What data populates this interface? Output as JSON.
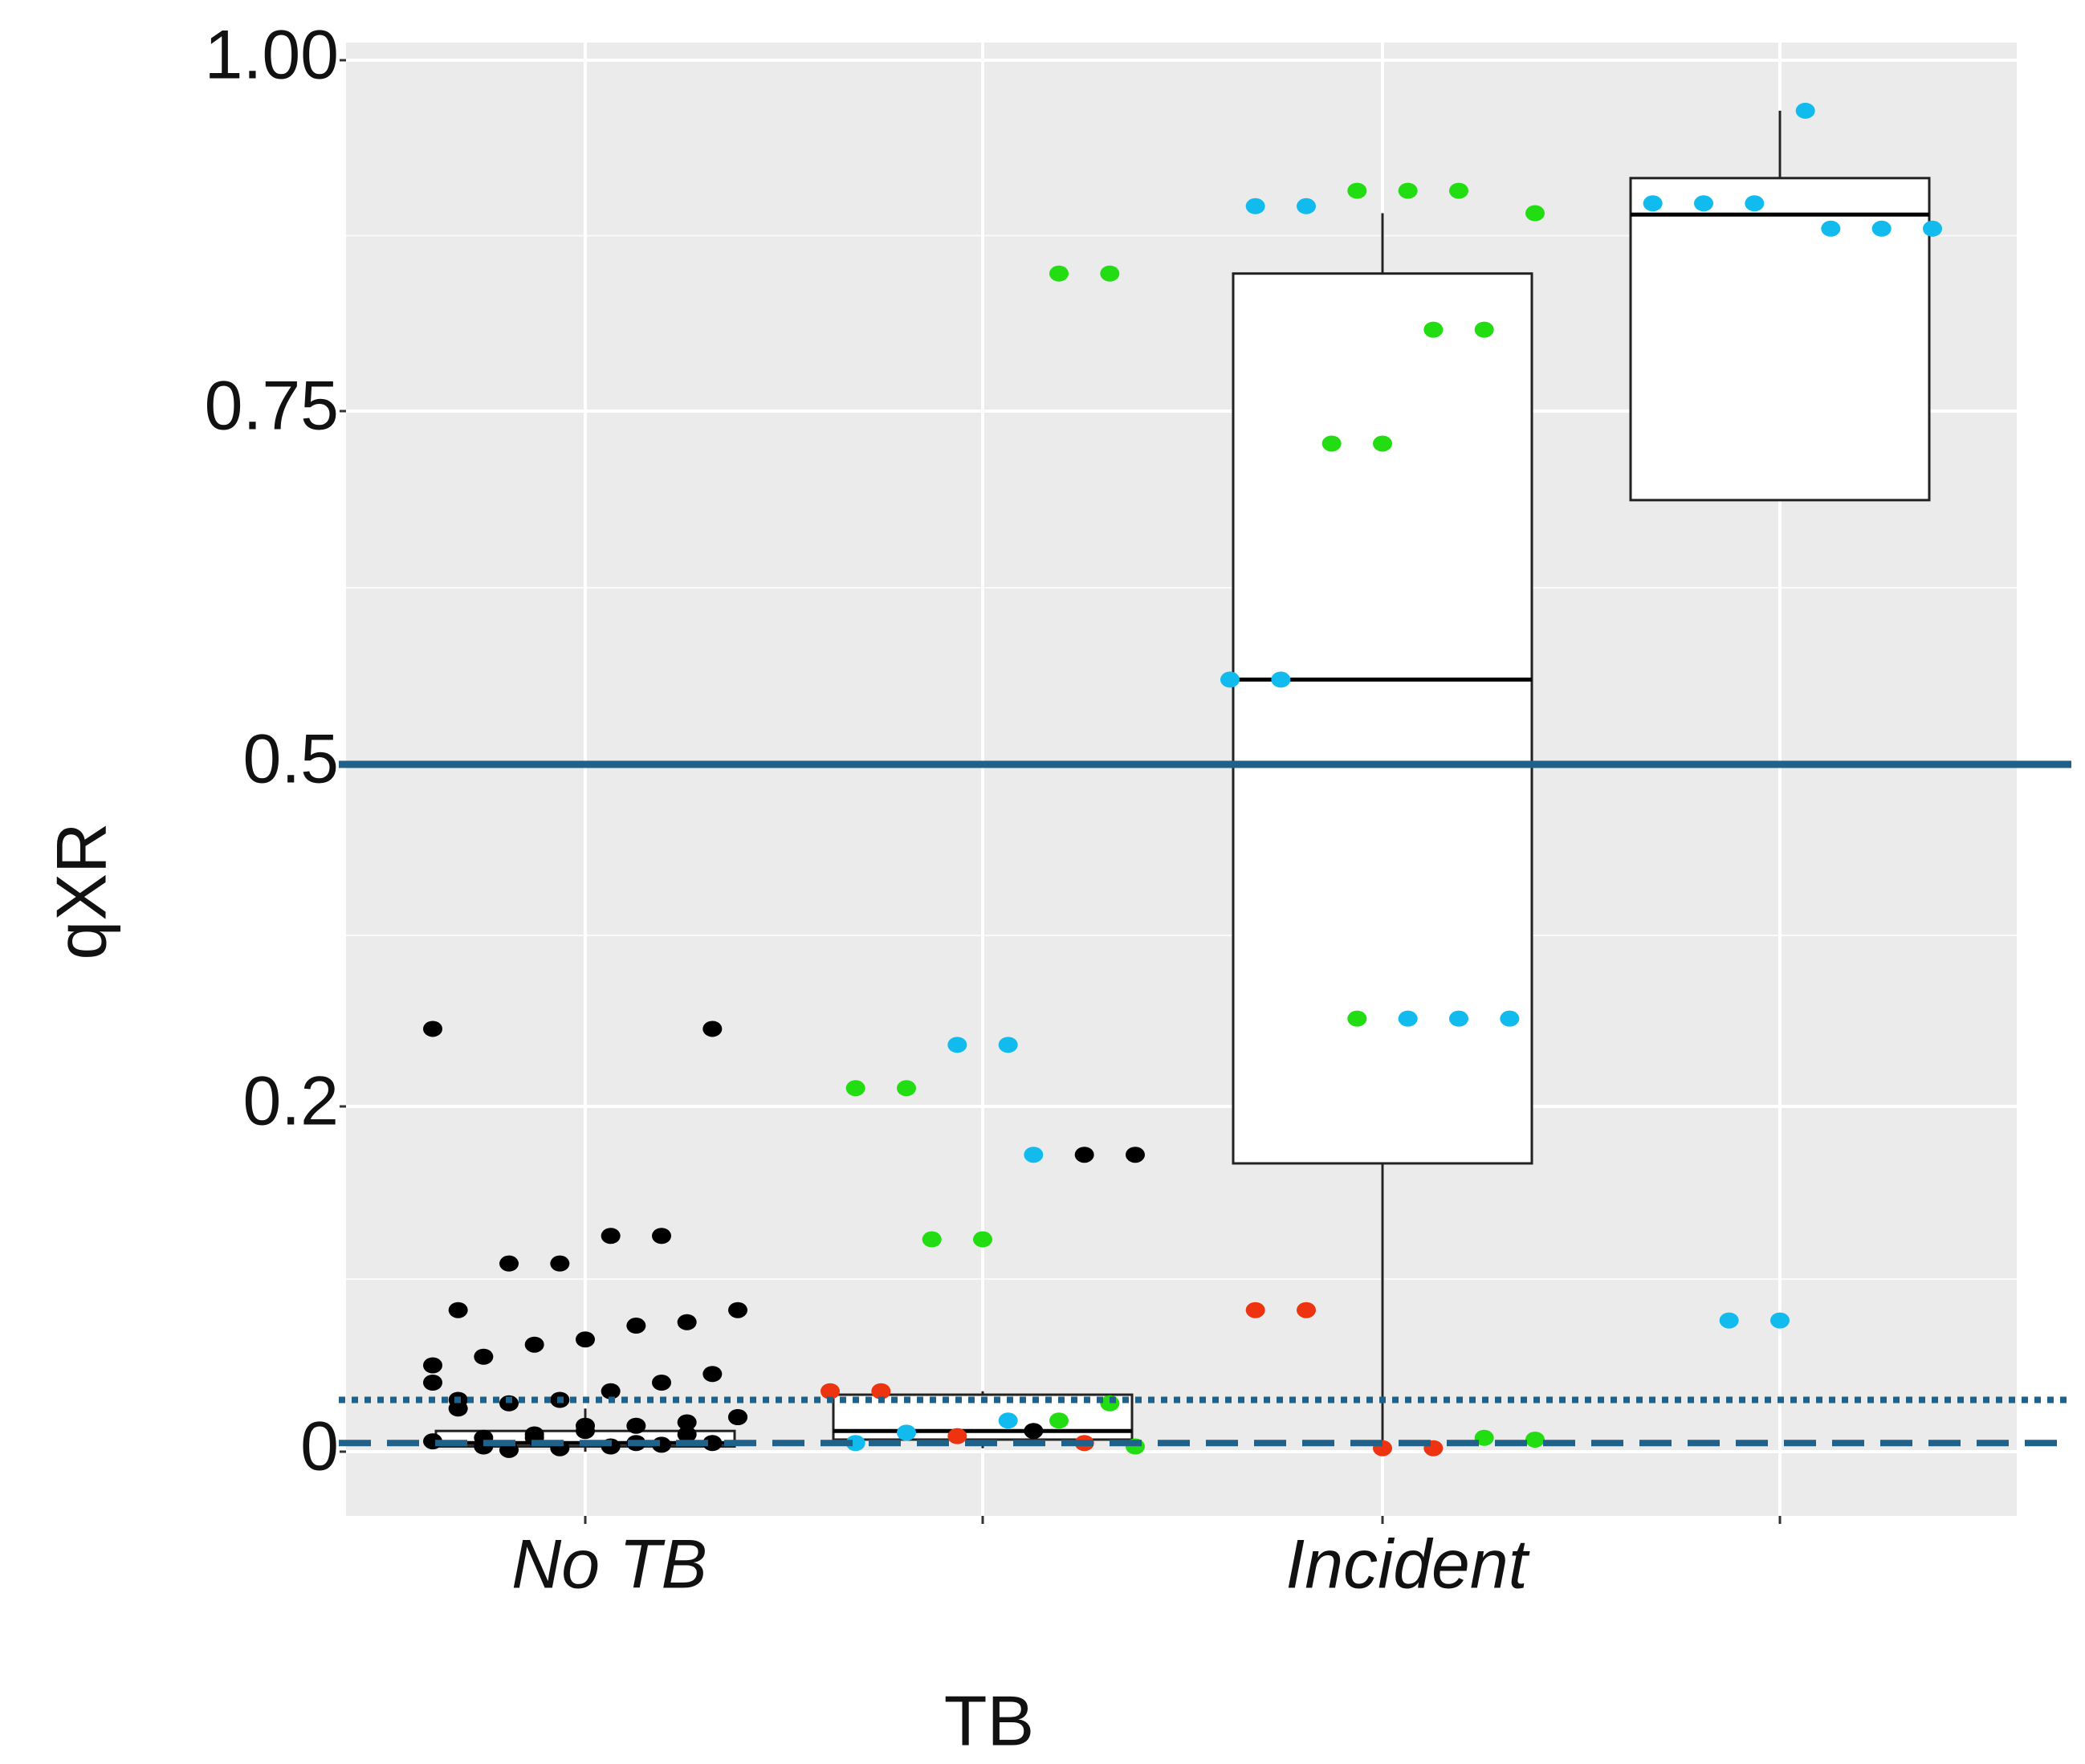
{
  "chart_data": {
    "type": "box",
    "x_label": "TB",
    "y_label": "qXR",
    "categories": [
      "No TB",
      null,
      "Incident",
      null
    ],
    "yticks": [
      0.0,
      0.2,
      0.5,
      {
        "value": 0.75,
        "label": "0.75"
      },
      {
        "value": 1.0,
        "label": "1.00"
      }
    ],
    "ylim": [
      -0.03,
      1.03
    ],
    "grid": true,
    "reference_lines": [
      {
        "value": 0.5,
        "style": "solid",
        "color": "#1f6188"
      },
      {
        "value": 0.03,
        "style": "dotted",
        "color": "#1f6188"
      },
      {
        "value": 0.005,
        "style": "dashed",
        "color": "#1f6188"
      }
    ],
    "boxes": [
      {
        "whisker_low": 0.0,
        "q1": 0.003,
        "median": 0.005,
        "q3": 0.012,
        "whisker_high": 0.025,
        "points": [
          0.268,
          0.268,
          0.125,
          0.125,
          0.109,
          0.109,
          0.082,
          0.082,
          0.075,
          0.073,
          0.065,
          0.062,
          0.055,
          0.05,
          0.045,
          0.04,
          0.035,
          0.03,
          0.028,
          0.025,
          0.02,
          0.017,
          0.015,
          0.012,
          0.01,
          0.008,
          0.006,
          0.005,
          0.004,
          0.003,
          0.002,
          0.001,
          0.03,
          0.02,
          0.01,
          0.005,
          0.015,
          0.008,
          0.003,
          0.04
        ],
        "point_colors": [
          "#000000"
        ]
      },
      {
        "whisker_low": 0.002,
        "q1": 0.007,
        "median": 0.012,
        "q3": 0.033,
        "whisker_high": 0.035,
        "points": [
          0.848,
          0.848,
          0.254,
          0.254,
          0.216,
          0.216,
          0.172,
          0.172,
          0.172,
          0.123,
          0.123,
          0.035,
          0.035,
          0.028,
          0.018,
          0.018,
          0.009,
          0.011,
          0.005,
          0.003,
          0.005,
          0.012
        ],
        "point_colors": [
          "#22dd11",
          "#22dd11",
          "#11bbee",
          "#11bbee",
          "#22dd11",
          "#22dd11",
          "#000000",
          "#000000",
          "#11bbee",
          "#22dd11",
          "#22dd11",
          "#ee3311",
          "#ee3311",
          "#22dd11",
          "#22dd11",
          "#11bbee",
          "#ee3311",
          "#11bbee",
          "#11bbee",
          "#22dd11",
          "#ee3311",
          "#000000"
        ]
      },
      {
        "whisker_low": 0.002,
        "q1": 0.167,
        "median": 0.56,
        "q3": 0.848,
        "whisker_high": 0.891,
        "points": [
          0.907,
          0.907,
          0.907,
          0.896,
          0.896,
          0.891,
          0.808,
          0.808,
          0.727,
          0.727,
          0.56,
          0.56,
          0.277,
          0.277,
          0.277,
          0.277,
          0.082,
          0.082,
          0.007,
          0.008,
          0.002,
          0.002
        ],
        "point_colors": [
          "#22dd11",
          "#22dd11",
          "#22dd11",
          "#11bbee",
          "#11bbee",
          "#22dd11",
          "#22dd11",
          "#22dd11",
          "#22dd11",
          "#22dd11",
          "#11bbee",
          "#11bbee",
          "#11bbee",
          "#11bbee",
          "#11bbee",
          "#22dd11",
          "#ee3311",
          "#ee3311",
          "#22dd11",
          "#22dd11",
          "#ee3311",
          "#ee3311"
        ]
      },
      {
        "whisker_low": 0.687,
        "q1": 0.687,
        "median": 0.89,
        "q3": 0.916,
        "whisker_high": 0.964,
        "points": [
          0.964,
          0.898,
          0.898,
          0.898,
          0.88,
          0.88,
          0.88,
          0.076,
          0.076
        ],
        "point_colors": [
          "#11bbee"
        ]
      }
    ]
  }
}
